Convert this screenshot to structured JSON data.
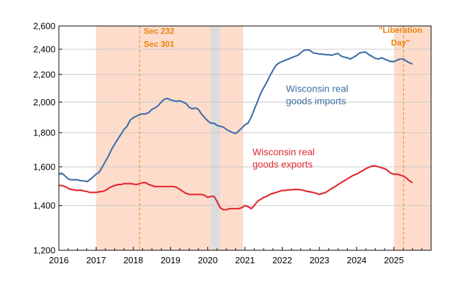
{
  "chart_data": {
    "type": "line",
    "title": "",
    "xlabel": "",
    "ylabel": "",
    "y_scale": "log",
    "ylim": [
      1200,
      2600
    ],
    "xlim": [
      2016.0,
      2026.0
    ],
    "y_ticks": [
      1200,
      1400,
      1600,
      1800,
      2000,
      2200,
      2400,
      2600
    ],
    "y_tick_labels": [
      "1,200",
      "1,400",
      "1,600",
      "1,800",
      "2,000",
      "2,200",
      "2,400",
      "2,600"
    ],
    "x_ticks": [
      2016,
      2017,
      2018,
      2019,
      2020,
      2021,
      2022,
      2023,
      2024,
      2025
    ],
    "x_tick_labels": [
      "2016",
      "2017",
      "2018",
      "2019",
      "2020",
      "2021",
      "2022",
      "2023",
      "2024",
      "2025"
    ],
    "grid": "horizontal",
    "colors": {
      "imports": "#3e6fa8",
      "exports": "#e0262e",
      "shade": "#fddccb",
      "recession": "#dcdcdc",
      "annotation": "#e8820c"
    },
    "shaded_periods": [
      {
        "start": 2017.0,
        "end": 2020.95,
        "color": "shade"
      },
      {
        "start": 2025.0,
        "end": 2026.0,
        "color": "shade"
      }
    ],
    "recession_periods": [
      {
        "start": 2020.08,
        "end": 2020.33
      }
    ],
    "vertical_lines": [
      {
        "x": 2018.17
      },
      {
        "x": 2025.26
      }
    ],
    "annotations": [
      {
        "text": "Sec 232",
        "x": 2018.17,
        "y": 2530
      },
      {
        "text": "Sec 301",
        "x": 2018.17,
        "y": 2420
      },
      {
        "text": "\"Liberation",
        "x": 2025.18,
        "y": 2540
      },
      {
        "text": "Day\"",
        "x": 2025.18,
        "y": 2430
      }
    ],
    "series_labels": [
      {
        "lines": [
          "Wisconsin real",
          "goods imports"
        ],
        "x": 2022.1,
        "y": 2070,
        "series": "imports"
      },
      {
        "lines": [
          "Wisconsin real",
          "goods exports"
        ],
        "x": 2021.2,
        "y": 1665,
        "series": "exports"
      }
    ],
    "series": [
      {
        "key": "imports",
        "name": "Wisconsin real goods imports",
        "color": "#3e6fa8",
        "points": [
          [
            2016.0,
            1560
          ],
          [
            2016.08,
            1565
          ],
          [
            2016.17,
            1550
          ],
          [
            2016.25,
            1535
          ],
          [
            2016.33,
            1530
          ],
          [
            2016.5,
            1530
          ],
          [
            2016.58,
            1525
          ],
          [
            2016.67,
            1525
          ],
          [
            2016.75,
            1520
          ],
          [
            2016.83,
            1530
          ],
          [
            2016.92,
            1545
          ],
          [
            2017.0,
            1560
          ],
          [
            2017.08,
            1570
          ],
          [
            2017.17,
            1600
          ],
          [
            2017.25,
            1630
          ],
          [
            2017.33,
            1660
          ],
          [
            2017.42,
            1700
          ],
          [
            2017.5,
            1730
          ],
          [
            2017.58,
            1760
          ],
          [
            2017.67,
            1790
          ],
          [
            2017.75,
            1820
          ],
          [
            2017.83,
            1840
          ],
          [
            2017.92,
            1880
          ],
          [
            2018.0,
            1895
          ],
          [
            2018.08,
            1905
          ],
          [
            2018.17,
            1915
          ],
          [
            2018.25,
            1920
          ],
          [
            2018.33,
            1920
          ],
          [
            2018.42,
            1930
          ],
          [
            2018.5,
            1950
          ],
          [
            2018.58,
            1960
          ],
          [
            2018.67,
            1975
          ],
          [
            2018.75,
            2000
          ],
          [
            2018.83,
            2020
          ],
          [
            2018.92,
            2025
          ],
          [
            2019.0,
            2015
          ],
          [
            2019.08,
            2010
          ],
          [
            2019.17,
            2005
          ],
          [
            2019.25,
            2010
          ],
          [
            2019.33,
            2000
          ],
          [
            2019.42,
            1990
          ],
          [
            2019.5,
            1965
          ],
          [
            2019.58,
            1955
          ],
          [
            2019.67,
            1960
          ],
          [
            2019.75,
            1950
          ],
          [
            2019.83,
            1920
          ],
          [
            2019.92,
            1895
          ],
          [
            2020.0,
            1875
          ],
          [
            2020.08,
            1860
          ],
          [
            2020.17,
            1860
          ],
          [
            2020.25,
            1845
          ],
          [
            2020.33,
            1840
          ],
          [
            2020.42,
            1835
          ],
          [
            2020.5,
            1820
          ],
          [
            2020.58,
            1810
          ],
          [
            2020.67,
            1800
          ],
          [
            2020.75,
            1795
          ],
          [
            2020.83,
            1810
          ],
          [
            2020.92,
            1830
          ],
          [
            2021.0,
            1850
          ],
          [
            2021.08,
            1860
          ],
          [
            2021.17,
            1900
          ],
          [
            2021.25,
            1950
          ],
          [
            2021.33,
            2000
          ],
          [
            2021.42,
            2060
          ],
          [
            2021.5,
            2100
          ],
          [
            2021.58,
            2140
          ],
          [
            2021.67,
            2190
          ],
          [
            2021.75,
            2230
          ],
          [
            2021.83,
            2270
          ],
          [
            2021.92,
            2290
          ],
          [
            2022.0,
            2300
          ],
          [
            2022.08,
            2310
          ],
          [
            2022.17,
            2320
          ],
          [
            2022.25,
            2330
          ],
          [
            2022.33,
            2340
          ],
          [
            2022.42,
            2350
          ],
          [
            2022.5,
            2370
          ],
          [
            2022.58,
            2390
          ],
          [
            2022.67,
            2395
          ],
          [
            2022.75,
            2390
          ],
          [
            2022.83,
            2370
          ],
          [
            2022.92,
            2365
          ],
          [
            2023.0,
            2360
          ],
          [
            2023.08,
            2360
          ],
          [
            2023.17,
            2355
          ],
          [
            2023.25,
            2355
          ],
          [
            2023.33,
            2350
          ],
          [
            2023.42,
            2360
          ],
          [
            2023.5,
            2365
          ],
          [
            2023.58,
            2345
          ],
          [
            2023.67,
            2335
          ],
          [
            2023.75,
            2330
          ],
          [
            2023.83,
            2320
          ],
          [
            2023.92,
            2335
          ],
          [
            2024.0,
            2350
          ],
          [
            2024.08,
            2370
          ],
          [
            2024.17,
            2375
          ],
          [
            2024.25,
            2375
          ],
          [
            2024.33,
            2355
          ],
          [
            2024.42,
            2340
          ],
          [
            2024.5,
            2325
          ],
          [
            2024.58,
            2320
          ],
          [
            2024.67,
            2330
          ],
          [
            2024.75,
            2320
          ],
          [
            2024.83,
            2310
          ],
          [
            2024.92,
            2300
          ],
          [
            2025.0,
            2300
          ],
          [
            2025.08,
            2310
          ],
          [
            2025.17,
            2320
          ],
          [
            2025.25,
            2320
          ],
          [
            2025.33,
            2305
          ],
          [
            2025.42,
            2290
          ],
          [
            2025.5,
            2280
          ]
        ]
      },
      {
        "key": "exports",
        "name": "Wisconsin real goods exports",
        "color": "#e0262e",
        "points": [
          [
            2016.0,
            1500
          ],
          [
            2016.08,
            1500
          ],
          [
            2016.17,
            1495
          ],
          [
            2016.25,
            1485
          ],
          [
            2016.33,
            1480
          ],
          [
            2016.5,
            1475
          ],
          [
            2016.58,
            1477
          ],
          [
            2016.67,
            1472
          ],
          [
            2016.75,
            1470
          ],
          [
            2016.83,
            1465
          ],
          [
            2016.92,
            1465
          ],
          [
            2017.0,
            1465
          ],
          [
            2017.08,
            1468
          ],
          [
            2017.17,
            1470
          ],
          [
            2017.25,
            1475
          ],
          [
            2017.33,
            1485
          ],
          [
            2017.42,
            1495
          ],
          [
            2017.5,
            1500
          ],
          [
            2017.58,
            1505
          ],
          [
            2017.67,
            1505
          ],
          [
            2017.75,
            1510
          ],
          [
            2017.83,
            1510
          ],
          [
            2017.92,
            1510
          ],
          [
            2018.0,
            1508
          ],
          [
            2018.08,
            1505
          ],
          [
            2018.17,
            1510
          ],
          [
            2018.25,
            1515
          ],
          [
            2018.33,
            1515
          ],
          [
            2018.42,
            1505
          ],
          [
            2018.5,
            1500
          ],
          [
            2018.58,
            1495
          ],
          [
            2018.67,
            1495
          ],
          [
            2018.75,
            1495
          ],
          [
            2018.83,
            1495
          ],
          [
            2018.92,
            1495
          ],
          [
            2019.0,
            1495
          ],
          [
            2019.08,
            1495
          ],
          [
            2019.17,
            1490
          ],
          [
            2019.25,
            1480
          ],
          [
            2019.33,
            1470
          ],
          [
            2019.42,
            1460
          ],
          [
            2019.5,
            1455
          ],
          [
            2019.58,
            1455
          ],
          [
            2019.67,
            1455
          ],
          [
            2019.75,
            1455
          ],
          [
            2019.83,
            1455
          ],
          [
            2019.92,
            1450
          ],
          [
            2020.0,
            1440
          ],
          [
            2020.08,
            1445
          ],
          [
            2020.17,
            1445
          ],
          [
            2020.25,
            1420
          ],
          [
            2020.33,
            1390
          ],
          [
            2020.42,
            1380
          ],
          [
            2020.5,
            1380
          ],
          [
            2020.58,
            1385
          ],
          [
            2020.67,
            1385
          ],
          [
            2020.75,
            1385
          ],
          [
            2020.83,
            1385
          ],
          [
            2020.92,
            1390
          ],
          [
            2021.0,
            1400
          ],
          [
            2021.08,
            1395
          ],
          [
            2021.17,
            1385
          ],
          [
            2021.25,
            1400
          ],
          [
            2021.33,
            1420
          ],
          [
            2021.42,
            1430
          ],
          [
            2021.5,
            1440
          ],
          [
            2021.58,
            1445
          ],
          [
            2021.67,
            1455
          ],
          [
            2021.75,
            1460
          ],
          [
            2021.83,
            1465
          ],
          [
            2021.92,
            1470
          ],
          [
            2022.0,
            1475
          ],
          [
            2022.08,
            1475
          ],
          [
            2022.17,
            1478
          ],
          [
            2022.25,
            1478
          ],
          [
            2022.33,
            1480
          ],
          [
            2022.42,
            1480
          ],
          [
            2022.5,
            1478
          ],
          [
            2022.58,
            1475
          ],
          [
            2022.67,
            1470
          ],
          [
            2022.75,
            1468
          ],
          [
            2022.83,
            1465
          ],
          [
            2022.92,
            1460
          ],
          [
            2023.0,
            1455
          ],
          [
            2023.08,
            1460
          ],
          [
            2023.17,
            1465
          ],
          [
            2023.25,
            1475
          ],
          [
            2023.33,
            1485
          ],
          [
            2023.42,
            1495
          ],
          [
            2023.5,
            1505
          ],
          [
            2023.58,
            1515
          ],
          [
            2023.67,
            1525
          ],
          [
            2023.75,
            1535
          ],
          [
            2023.83,
            1545
          ],
          [
            2023.92,
            1555
          ],
          [
            2024.0,
            1560
          ],
          [
            2024.08,
            1570
          ],
          [
            2024.17,
            1580
          ],
          [
            2024.25,
            1590
          ],
          [
            2024.33,
            1598
          ],
          [
            2024.42,
            1605
          ],
          [
            2024.5,
            1605
          ],
          [
            2024.58,
            1600
          ],
          [
            2024.67,
            1595
          ],
          [
            2024.75,
            1590
          ],
          [
            2024.83,
            1580
          ],
          [
            2024.92,
            1565
          ],
          [
            2025.0,
            1560
          ],
          [
            2025.08,
            1560
          ],
          [
            2025.17,
            1555
          ],
          [
            2025.25,
            1550
          ],
          [
            2025.33,
            1540
          ],
          [
            2025.42,
            1525
          ],
          [
            2025.5,
            1515
          ]
        ]
      }
    ]
  }
}
